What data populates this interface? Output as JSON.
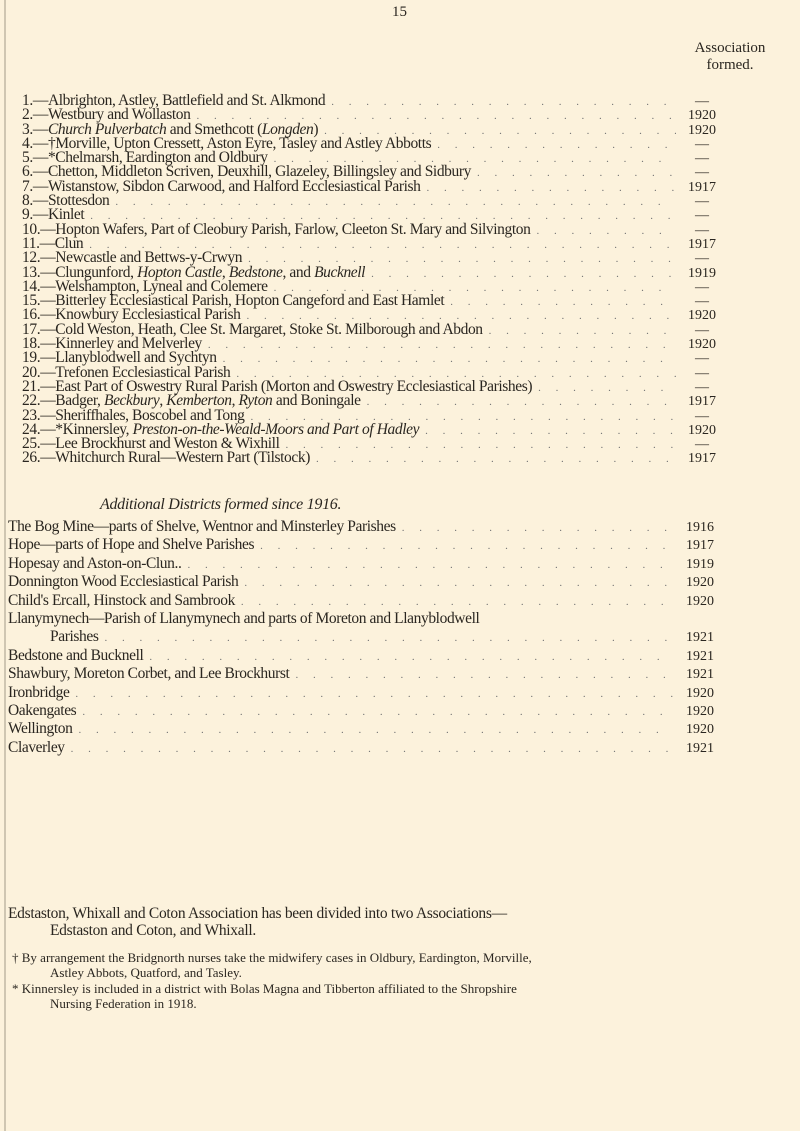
{
  "page_number": "15",
  "column_heading": "Association formed.",
  "districts": [
    {
      "n": "1.",
      "text": "Albrighton, Astley, Battlefield and St. Alkmond",
      "year": "—"
    },
    {
      "n": "2.",
      "text": "Westbury and Wollaston",
      "year": "1920"
    },
    {
      "n": "3.",
      "text": "<i>Church Pulverbatch</i> and Smethcott (<i>Longden</i>)",
      "year": "1920"
    },
    {
      "n": "4.",
      "text": "†Morville, Upton Cressett, Aston Eyre, Tasley and Astley Abbotts",
      "year": "—"
    },
    {
      "n": "5.",
      "text": "*Chelmarsh, Eardington and Oldbury",
      "year": "—"
    },
    {
      "n": "6.",
      "text": "Chetton, Middleton Scriven, Deuxhill, Glazeley, Billingsley and Sidbury",
      "year": "—"
    },
    {
      "n": "7.",
      "text": "Wistanstow, Sibdon Carwood, and Halford Ecclesiastical Parish",
      "year": "1917"
    },
    {
      "n": "8.",
      "text": "Stottesdon",
      "year": "—"
    },
    {
      "n": "9.",
      "text": "Kinlet",
      "year": "—"
    },
    {
      "n": "10.",
      "text": "Hopton Wafers, Part of Cleobury Parish, Farlow, Cleeton St. Mary and Silvington",
      "year": "—"
    },
    {
      "n": "11.",
      "text": "Clun",
      "year": "1917"
    },
    {
      "n": "12.",
      "text": "Newcastle and Bettws-y-Crwyn",
      "year": "—"
    },
    {
      "n": "13.",
      "text": "Clungunford, <i>Hopton Castle</i>, <i>Bedstone</i>, and <i>Bucknell</i>",
      "year": "1919"
    },
    {
      "n": "14.",
      "text": "Welshampton, Lyneal and Colemere",
      "year": "—"
    },
    {
      "n": "15.",
      "text": "Bitterley Ecclesiastical Parish, Hopton Cangeford and East Hamlet",
      "year": "—"
    },
    {
      "n": "16.",
      "text": "Knowbury Ecclesiastical Parish",
      "year": "1920"
    },
    {
      "n": "17.",
      "text": "Cold Weston, Heath, Clee St. Margaret, Stoke St. Milborough and Abdon",
      "year": "—"
    },
    {
      "n": "18.",
      "text": "Kinnerley and Melverley",
      "year": "1920"
    },
    {
      "n": "19.",
      "text": "Llanyblodwell and Sychtyn",
      "year": "—"
    },
    {
      "n": "20.",
      "text": "Trefonen Ecclesiastical Parish",
      "year": "—"
    },
    {
      "n": "21.",
      "text": "East Part of Oswestry Rural Parish (Morton and Oswestry Ecclesiastical Parishes)",
      "year": "—"
    },
    {
      "n": "22.",
      "text": "Badger, <i>Beckbury</i>, <i>Kemberton</i>, <i>Ryton</i> and Boningale",
      "year": "1917"
    },
    {
      "n": "23.",
      "text": "Sheriffhales, Boscobel and Tong",
      "year": "—"
    },
    {
      "n": "24.",
      "text": "*Kinnersley, <i>Preston-on-the-Weald-Moors and Part of Hadley</i>",
      "year": "1920"
    },
    {
      "n": "25.",
      "text": "Lee Brockhurst and Weston &amp; Wixhill",
      "year": "—"
    },
    {
      "n": "26.",
      "text": "Whitchurch Rural—Western Part (Tilstock)",
      "year": "1917"
    }
  ],
  "additional_heading": "Additional Districts formed since 1916.",
  "additional": [
    {
      "text": "The Bog Mine—parts of Shelve, Wentnor and Minsterley Parishes",
      "year": "1916"
    },
    {
      "text": "Hope—parts of Hope and Shelve Parishes",
      "year": "1917"
    },
    {
      "text": "Hopesay and Aston-on-Clun..",
      "year": "1919"
    },
    {
      "text": "Donnington Wood Ecclesiastical Parish",
      "year": "1920"
    },
    {
      "text": "Child's Ercall, Hinstock and Sambrook",
      "year": "1920"
    },
    {
      "text": "Llanymynech—Parish of Llanymynech and parts of Moreton and Llanyblodwell",
      "cont": "Parishes",
      "year": "1921"
    },
    {
      "text": "Bedstone and Bucknell",
      "year": "1921"
    },
    {
      "text": "Shawbury, Moreton Corbet, and Lee Brockhurst",
      "year": "1921"
    },
    {
      "text": "Ironbridge",
      "year": "1920"
    },
    {
      "text": "Oakengates",
      "year": "1920"
    },
    {
      "text": "Wellington",
      "year": "1920"
    },
    {
      "text": "Claverley",
      "year": "1921"
    }
  ],
  "note": {
    "line1": "Edstaston, Whixall and Coton Association has been divided into two Associations—",
    "line2": "Edstaston and Coton, and Whixall."
  },
  "footnotes": [
    {
      "mark": "†",
      "line1": "By arrangement the Bridgnorth nurses take the midwifery cases in Oldbury, Eardington, Morville,",
      "line2": "Astley Abbots, Quatford, and Tasley."
    },
    {
      "mark": "*",
      "line1": "Kinnersley is included in a district with Bolas Magna and Tibberton affiliated to the Shropshire",
      "line2": "Nursing Federation in 1918."
    }
  ]
}
